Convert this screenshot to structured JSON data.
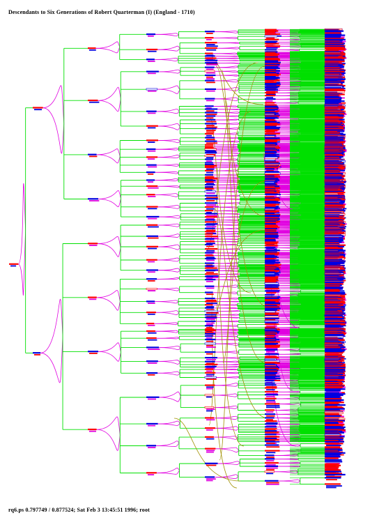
{
  "title": "Descendants to Six Generations of Robert Quarterman (I) (England - 1710)",
  "footer": "rq6.ps 0.797749 / 0.877524; Sat Feb 3 13:45:51 1996; root",
  "colors": {
    "background": "#ffffff",
    "descent_link": "#00e000",
    "marriage_link": "#e000e0",
    "cross_link": "#a09000",
    "male": "#0000e0",
    "female": "#ff0000",
    "name_magenta": "#e000e0"
  }
}
